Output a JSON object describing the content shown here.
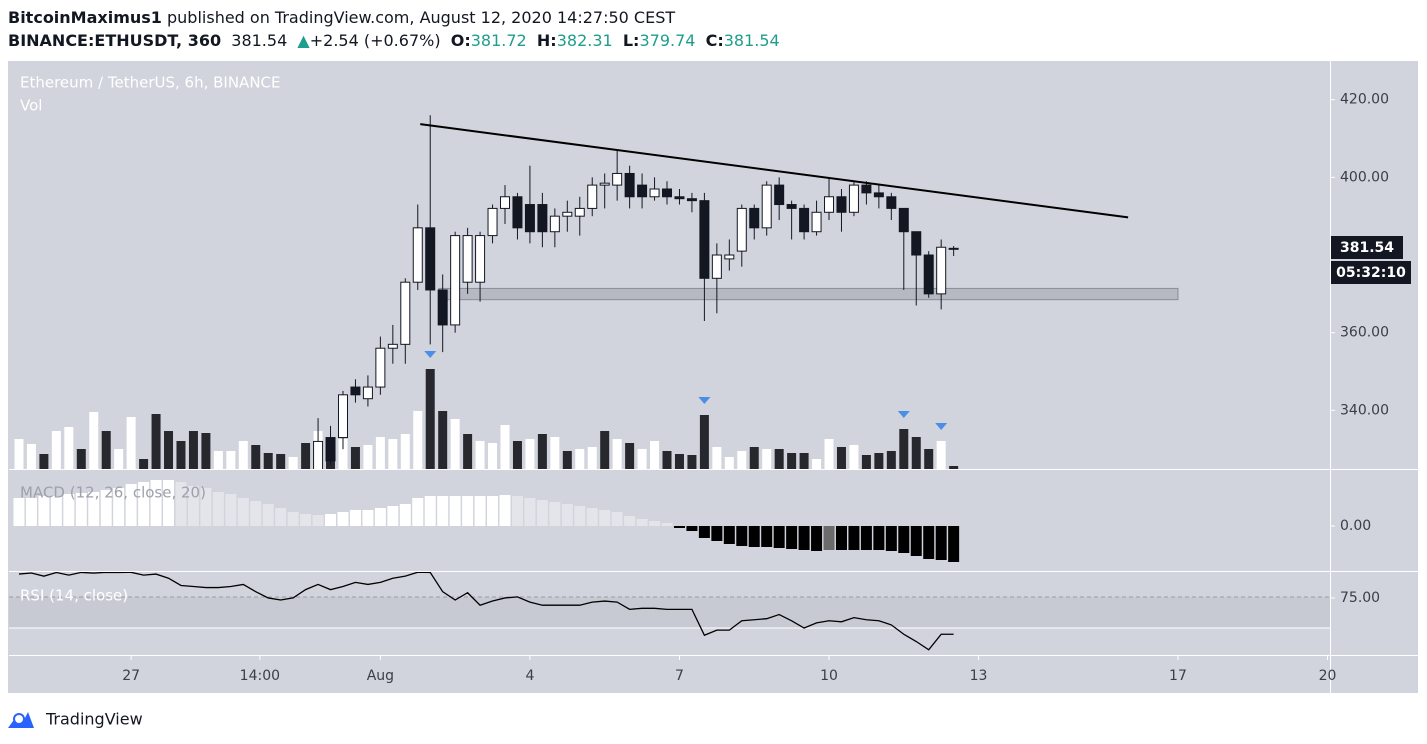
{
  "header": {
    "author": "BitcoinMaximus1",
    "published": " published on TradingView.com, August 12, 2020 14:27:50 CEST",
    "symbol": "BINANCE:ETHUSDT, 360",
    "last": "381.54",
    "arrow": "▲",
    "change": "+2.54 (+0.67%)",
    "o_label": "O:",
    "o": "381.72",
    "h_label": "H:",
    "h": "382.31",
    "l_label": "L:",
    "l": "379.74",
    "c_label": "C:",
    "c": "381.54"
  },
  "chart_data": {
    "type": "candlestick",
    "title": "Ethereum / TetherUS, 6h, BINANCE",
    "volume_label": "Vol",
    "macd_label": "MACD (12, 26, close, 20)",
    "rsi_label": "RSI (14, close)",
    "price_label": "381.54",
    "countdown": "05:32:10",
    "logo": "TradingView",
    "xlim": [
      -0.8,
      105.2
    ],
    "xticks": [
      {
        "value": 9,
        "label": "27"
      },
      {
        "value": 19.33,
        "label": "14:00"
      },
      {
        "value": 29,
        "label": "Aug"
      },
      {
        "value": 41,
        "label": "4"
      },
      {
        "value": 53,
        "label": "7"
      },
      {
        "value": 65,
        "label": "10"
      },
      {
        "value": 77,
        "label": "13"
      },
      {
        "value": 93,
        "label": "17"
      },
      {
        "value": 105,
        "label": "20"
      }
    ],
    "ylim": [
      324.9,
      429.7
    ],
    "yticks": [
      {
        "value": 340,
        "label": "340.00"
      },
      {
        "value": 360,
        "label": "360.00"
      },
      {
        "value": 380,
        "label": "380.00"
      },
      {
        "value": 400,
        "label": "400.00"
      },
      {
        "value": 420,
        "label": "420.00"
      }
    ],
    "open": [
      null,
      null,
      null,
      null,
      null,
      null,
      null,
      null,
      null,
      null,
      null,
      null,
      null,
      null,
      null,
      null,
      null,
      null,
      null,
      null,
      null,
      null,
      null,
      null,
      322,
      333,
      333,
      346,
      343,
      346,
      356,
      357,
      373,
      387,
      371,
      362,
      373,
      373,
      385,
      392,
      395,
      393,
      393,
      386,
      390,
      390,
      392,
      398,
      398,
      401,
      398,
      395,
      397,
      395,
      394.5,
      394,
      374,
      379,
      381,
      392,
      387,
      398,
      393,
      392,
      386,
      391,
      395,
      391,
      398,
      396,
      395,
      392,
      386,
      380,
      370,
      381.72
    ],
    "high": [
      null,
      null,
      null,
      null,
      null,
      null,
      null,
      null,
      null,
      null,
      null,
      null,
      null,
      null,
      null,
      null,
      null,
      null,
      null,
      null,
      null,
      null,
      null,
      null,
      338,
      336,
      345,
      348,
      349,
      359,
      362,
      374,
      393,
      416,
      375,
      386,
      387,
      386,
      393,
      398,
      396,
      403,
      396,
      392,
      394,
      395,
      400,
      401,
      407,
      403,
      401,
      400,
      399,
      397,
      396,
      396,
      383,
      384,
      393,
      393,
      399,
      400,
      394,
      393,
      394,
      400,
      397,
      399,
      399,
      398,
      396,
      392,
      386,
      381,
      384,
      382.31
    ],
    "low": [
      null,
      null,
      null,
      null,
      null,
      null,
      null,
      null,
      null,
      null,
      null,
      null,
      null,
      null,
      null,
      null,
      null,
      null,
      null,
      null,
      null,
      null,
      null,
      null,
      320,
      326,
      330,
      342,
      341,
      344,
      352,
      352,
      371,
      357,
      355,
      360,
      370,
      368,
      383,
      388,
      384,
      383,
      382,
      382,
      386,
      385,
      390,
      392,
      394,
      392,
      392,
      394,
      393,
      393,
      391,
      363,
      365,
      376,
      377,
      384,
      385,
      389,
      384,
      384,
      385,
      389,
      386,
      390,
      393,
      392,
      389,
      371,
      367,
      369,
      366,
      379.74
    ],
    "close": [
      null,
      null,
      null,
      null,
      null,
      null,
      null,
      null,
      null,
      null,
      null,
      null,
      null,
      null,
      null,
      null,
      null,
      null,
      null,
      null,
      null,
      null,
      null,
      null,
      332,
      327,
      344,
      344,
      346,
      356,
      357,
      373,
      387,
      371,
      362,
      385,
      385,
      385,
      392,
      395,
      387,
      386,
      386,
      390,
      391,
      392,
      398,
      398.5,
      401,
      395,
      395,
      397,
      395,
      394.5,
      394,
      374,
      380,
      380,
      392,
      387,
      398,
      393,
      392,
      386,
      391,
      395,
      391,
      398,
      396,
      395,
      392,
      386,
      380,
      370,
      382,
      381.54
    ],
    "volume": [
      30,
      25,
      15,
      38,
      42,
      20,
      57,
      38,
      20,
      52,
      10,
      55,
      38,
      28,
      38,
      36,
      18,
      18,
      28,
      24,
      16,
      15,
      12,
      26,
      38,
      28,
      30,
      22,
      24,
      32,
      30,
      35,
      58,
      100,
      58,
      50,
      35,
      28,
      26,
      44,
      28,
      30,
      35,
      32,
      18,
      20,
      22,
      38,
      30,
      26,
      20,
      28,
      18,
      15,
      14,
      54,
      22,
      12,
      18,
      22,
      20,
      20,
      16,
      16,
      10,
      30,
      22,
      24,
      14,
      16,
      18,
      40,
      32,
      20,
      28,
      3
    ],
    "volume_up": [
      true,
      true,
      false,
      true,
      true,
      false,
      true,
      false,
      true,
      true,
      false,
      false,
      false,
      false,
      false,
      false,
      true,
      true,
      true,
      false,
      false,
      false,
      true,
      false,
      true,
      false,
      true,
      false,
      true,
      true,
      true,
      true,
      true,
      false,
      false,
      true,
      false,
      true,
      true,
      true,
      false,
      true,
      false,
      true,
      false,
      true,
      true,
      false,
      true,
      false,
      true,
      true,
      false,
      false,
      false,
      false,
      true,
      true,
      true,
      false,
      true,
      false,
      false,
      false,
      true,
      true,
      false,
      true,
      false,
      false,
      false,
      false,
      false,
      false,
      true,
      false
    ],
    "vol_ylim": [
      0,
      407
    ],
    "macd": [
      28,
      28,
      30,
      30,
      32,
      33,
      34,
      36,
      38,
      42,
      44,
      46,
      46,
      44,
      40,
      38,
      34,
      32,
      28,
      25,
      22,
      18,
      14,
      12,
      11,
      12,
      14,
      16,
      16,
      18,
      20,
      22,
      28,
      30,
      30,
      30,
      30,
      30,
      30,
      31,
      30,
      28,
      26,
      24,
      22,
      20,
      18,
      16,
      14,
      10,
      7,
      5,
      3,
      -2,
      -5,
      -12,
      -15,
      -18,
      -20,
      -21,
      -21,
      -22,
      -23,
      -24,
      -25,
      -24,
      -24,
      -24,
      -24,
      -24,
      -25,
      -27,
      -30,
      -33,
      -34,
      -36
    ],
    "macd_ylim": [
      -45,
      57
    ],
    "macd_yticks": [
      {
        "value": 0,
        "label": "0.00"
      }
    ],
    "macd_colors": {
      "pos_up": "#ffffff",
      "pos_down": "#e4e5ea",
      "neg_down": "#000000",
      "neg_up": "#6b6b6b"
    },
    "rsi": [
      98,
      99,
      96,
      99.5,
      97,
      99.6,
      99,
      99.7,
      99.5,
      99.7,
      97,
      98,
      94,
      87,
      86,
      85,
      85,
      86,
      88,
      81,
      75,
      73,
      75,
      83,
      88,
      83,
      86,
      90,
      88,
      90,
      94,
      96,
      99.8,
      99.6,
      81,
      73,
      80,
      68,
      72,
      75,
      76,
      71,
      68,
      68,
      68,
      68,
      71,
      72,
      71,
      64,
      65,
      65,
      64,
      64,
      64,
      39,
      44,
      44,
      53,
      54,
      55,
      59,
      53,
      46,
      51,
      53,
      52,
      56,
      54,
      53,
      49,
      40,
      33,
      25,
      40,
      40
    ],
    "rsi_ylim": [
      20,
      100
    ],
    "rsi_yticks": [
      {
        "value": 75,
        "label": "75.00"
      }
    ],
    "trendline": {
      "x": [
        32.2,
        89
      ],
      "y": [
        413.7,
        389.7
      ]
    },
    "zone": {
      "x": [
        33.7,
        93
      ],
      "y": [
        368.5,
        371.4
      ]
    },
    "signals": [
      33,
      55,
      71,
      74
    ],
    "colors": {
      "up": "#ffffff",
      "down": "#131722",
      "volume_up": "#ffffff",
      "volume_down": "#26282e",
      "signal": "#4a8ee6",
      "rsi": "#000000",
      "background": "#d1d4dc"
    }
  }
}
